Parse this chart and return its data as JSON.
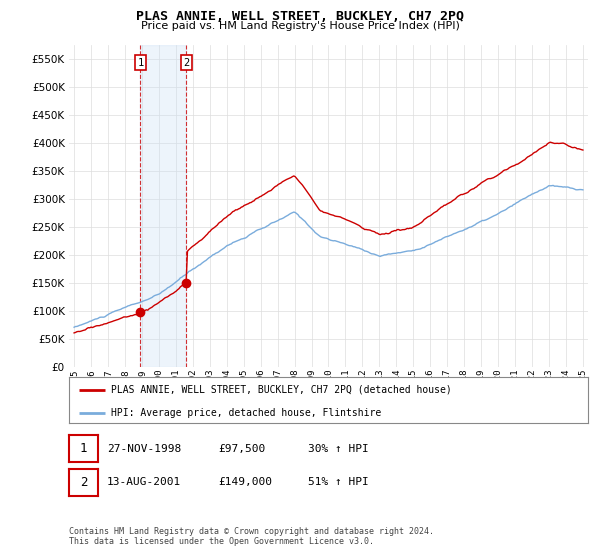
{
  "title": "PLAS ANNIE, WELL STREET, BUCKLEY, CH7 2PQ",
  "subtitle": "Price paid vs. HM Land Registry's House Price Index (HPI)",
  "ylim": [
    0,
    575000
  ],
  "yticks": [
    0,
    50000,
    100000,
    150000,
    200000,
    250000,
    300000,
    350000,
    400000,
    450000,
    500000,
    550000
  ],
  "background_color": "#ffffff",
  "grid_color": "#dddddd",
  "sale1": {
    "date_num": 1998.91,
    "price": 97500,
    "label": "1",
    "pct": "30%",
    "date_str": "27-NOV-1998"
  },
  "sale2": {
    "date_num": 2001.62,
    "price": 149000,
    "label": "2",
    "pct": "51%",
    "date_str": "13-AUG-2001"
  },
  "legend_entry1": "PLAS ANNIE, WELL STREET, BUCKLEY, CH7 2PQ (detached house)",
  "legend_entry2": "HPI: Average price, detached house, Flintshire",
  "footnote": "Contains HM Land Registry data © Crown copyright and database right 2024.\nThis data is licensed under the Open Government Licence v3.0.",
  "table_row1": [
    "1",
    "27-NOV-1998",
    "£97,500",
    "30% ↑ HPI"
  ],
  "table_row2": [
    "2",
    "13-AUG-2001",
    "£149,000",
    "51% ↑ HPI"
  ],
  "sale_color": "#cc0000",
  "hpi_color": "#7aacdc",
  "sale_dot_color": "#cc0000",
  "vertical_band_color": "#cce0f5",
  "xmin": 1994.7,
  "xmax": 2025.3
}
